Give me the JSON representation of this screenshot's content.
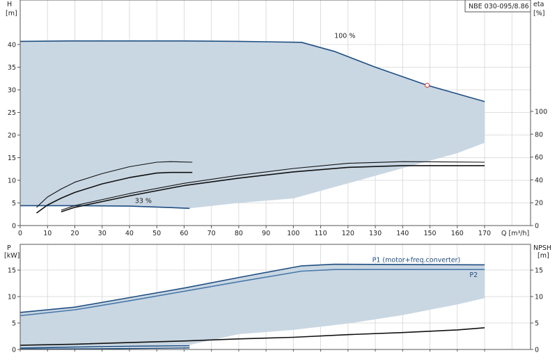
{
  "colors": {
    "envelope": "#c9d7e3",
    "envelope_light": "#e7f0f8",
    "curve_blue": "#1f4e80",
    "curve_black": "#111111",
    "p2_line": "#4a79a8",
    "marker": "#e03a3a",
    "grid": "#d4d4d4"
  },
  "chart_data": [
    {
      "type": "line",
      "id": "head-efficiency",
      "title": "NBE 030-095/8.86",
      "x": {
        "label": "Q [m³/h]",
        "range": [
          0,
          170
        ],
        "ticks": [
          0,
          10,
          20,
          30,
          40,
          50,
          60,
          70,
          80,
          90,
          100,
          110,
          120,
          130,
          140,
          150,
          160,
          170
        ]
      },
      "y_left": {
        "label": "H",
        "unit": "[m]",
        "range": [
          0,
          45
        ],
        "ticks": [
          0,
          5,
          10,
          15,
          20,
          25,
          30,
          35,
          40
        ]
      },
      "y_right": {
        "label": "eta",
        "unit": "[%]",
        "range": [
          0,
          120
        ],
        "ticks": [
          0,
          20,
          40,
          60,
          80,
          100
        ]
      },
      "grid": true,
      "envelope": {
        "upper": [
          [
            0,
            40.7
          ],
          [
            18,
            40.8
          ],
          [
            60,
            40.8
          ],
          [
            80,
            40.7
          ],
          [
            103,
            40.5
          ],
          [
            115,
            38.5
          ],
          [
            130,
            35
          ],
          [
            149,
            31
          ],
          [
            170,
            27.4
          ]
        ],
        "lower": [
          [
            170,
            18.3
          ],
          [
            160,
            16
          ],
          [
            145,
            13.5
          ],
          [
            130,
            11
          ],
          [
            115,
            8.5
          ],
          [
            100,
            6
          ],
          [
            80,
            5
          ],
          [
            62,
            3.8
          ],
          [
            40,
            4.2
          ],
          [
            20,
            4.4
          ],
          [
            0,
            4.4
          ]
        ]
      },
      "light_region": [
        [
          0,
          4.4
        ],
        [
          0,
          40.7
        ],
        [
          18,
          40.8
        ],
        [
          13,
          29
        ],
        [
          10,
          19
        ],
        [
          8,
          11
        ],
        [
          6,
          5
        ],
        [
          4.5,
          4.4
        ]
      ],
      "series": [
        {
          "name": "100 %",
          "axis": "left",
          "color": "curve_blue",
          "points": [
            [
              0,
              40.7
            ],
            [
              18,
              40.8
            ],
            [
              60,
              40.8
            ],
            [
              80,
              40.7
            ],
            [
              103,
              40.5
            ],
            [
              115,
              38.5
            ],
            [
              130,
              35
            ],
            [
              149,
              31
            ],
            [
              170,
              27.4
            ]
          ]
        },
        {
          "name": "33 %",
          "axis": "left",
          "color": "curve_blue",
          "points": [
            [
              0,
              4.4
            ],
            [
              20,
              4.4
            ],
            [
              40,
              4.3
            ],
            [
              50,
              4.1
            ],
            [
              62,
              3.8
            ]
          ]
        },
        {
          "name": "",
          "axis": "right",
          "color": "curve_black",
          "thin": true,
          "points": [
            [
              6,
              16
            ],
            [
              10,
              25
            ],
            [
              15,
              32
            ],
            [
              20,
              38
            ],
            [
              30,
              45.5
            ],
            [
              40,
              51.5
            ],
            [
              50,
              55.5
            ],
            [
              55,
              56
            ],
            [
              63,
              55.5
            ]
          ]
        },
        {
          "name": "",
          "axis": "right",
          "color": "curve_black",
          "points": [
            [
              6,
              11
            ],
            [
              10,
              18
            ],
            [
              15,
              24
            ],
            [
              20,
              29
            ],
            [
              30,
              36.5
            ],
            [
              40,
              42
            ],
            [
              50,
              46
            ],
            [
              55,
              46.5
            ],
            [
              63,
              46.5
            ]
          ]
        },
        {
          "name": "",
          "axis": "right",
          "color": "curve_black",
          "thin": true,
          "points": [
            [
              15,
              13.5
            ],
            [
              20,
              17.5
            ],
            [
              40,
              28
            ],
            [
              60,
              37
            ],
            [
              80,
              44
            ],
            [
              100,
              50
            ],
            [
              120,
              54.5
            ],
            [
              140,
              56
            ],
            [
              170,
              55.5
            ]
          ]
        },
        {
          "name": "",
          "axis": "right",
          "color": "curve_black",
          "points": [
            [
              15,
              12
            ],
            [
              20,
              16
            ],
            [
              40,
              26
            ],
            [
              60,
              35
            ],
            [
              80,
              41.5
            ],
            [
              100,
              47
            ],
            [
              120,
              51
            ],
            [
              140,
              52.5
            ],
            [
              170,
              52.5
            ]
          ]
        }
      ],
      "annotations": [
        {
          "text": "100 %",
          "x": 115,
          "y": 41.5
        },
        {
          "text": "33 %",
          "x": 42,
          "y": 5
        }
      ],
      "marker": {
        "x": 149,
        "y": 31
      }
    },
    {
      "type": "line",
      "id": "power-npsh",
      "x": {
        "range": [
          0,
          170
        ]
      },
      "y_left": {
        "label": "P",
        "unit": "[kW]",
        "range": [
          0,
          17.5
        ],
        "ticks": [
          0,
          5,
          10,
          15
        ]
      },
      "y_right": {
        "label": "NPSH",
        "unit": "[m]",
        "range": [
          0,
          17.5
        ],
        "ticks": [
          0,
          5,
          10,
          15
        ]
      },
      "grid": true,
      "envelope": {
        "upper": [
          [
            0,
            7
          ],
          [
            20,
            8
          ],
          [
            40,
            9.8
          ],
          [
            60,
            11.6
          ],
          [
            80,
            13.6
          ],
          [
            103,
            15.8
          ],
          [
            115,
            16.1
          ],
          [
            170,
            16
          ]
        ],
        "lower": [
          [
            170,
            9.7
          ],
          [
            160,
            8.5
          ],
          [
            140,
            6.5
          ],
          [
            120,
            4.9
          ],
          [
            100,
            3.7
          ],
          [
            80,
            2.9
          ],
          [
            62,
            0.85
          ],
          [
            40,
            0.7
          ],
          [
            20,
            0.55
          ],
          [
            0,
            0.3
          ]
        ]
      },
      "light_region": [
        [
          0,
          0.3
        ],
        [
          0,
          7
        ],
        [
          20,
          8
        ],
        [
          16,
          4.5
        ],
        [
          13,
          1.5
        ],
        [
          10,
          0.45
        ]
      ],
      "series": [
        {
          "name": "P1 (motor+freq.converter)",
          "axis": "left",
          "color": "curve_blue",
          "points": [
            [
              0,
              7
            ],
            [
              20,
              8
            ],
            [
              40,
              9.8
            ],
            [
              60,
              11.6
            ],
            [
              80,
              13.6
            ],
            [
              103,
              15.8
            ],
            [
              115,
              16.1
            ],
            [
              170,
              16
            ]
          ]
        },
        {
          "name": "P2",
          "axis": "left",
          "color": "p2_line",
          "points": [
            [
              0,
              6.4
            ],
            [
              20,
              7.5
            ],
            [
              40,
              9.2
            ],
            [
              60,
              11
            ],
            [
              80,
              12.8
            ],
            [
              103,
              14.8
            ],
            [
              115,
              15.1
            ],
            [
              170,
              15.1
            ]
          ]
        },
        {
          "name": "",
          "axis": "left",
          "color": "curve_blue",
          "points": [
            [
              0,
              0.25
            ],
            [
              20,
              0.45
            ],
            [
              40,
              0.6
            ],
            [
              62,
              0.7
            ]
          ]
        },
        {
          "name": "",
          "axis": "left",
          "color": "curve_blue",
          "points": [
            [
              0,
              0.05
            ],
            [
              30,
              0.15
            ],
            [
              62,
              0.3
            ]
          ]
        },
        {
          "name": "",
          "axis": "right",
          "color": "curve_black",
          "points": [
            [
              0,
              0.8
            ],
            [
              20,
              1
            ],
            [
              40,
              1.3
            ],
            [
              60,
              1.6
            ],
            [
              80,
              2
            ],
            [
              100,
              2.3
            ],
            [
              120,
              2.8
            ],
            [
              140,
              3.2
            ],
            [
              160,
              3.7
            ],
            [
              170,
              4.1
            ]
          ]
        }
      ],
      "annotations": [
        {
          "text": "P1 (motor+freq.converter)",
          "x": 145,
          "y": 16.5
        },
        {
          "text": "P2",
          "x": 166,
          "y": 13.7
        }
      ]
    }
  ]
}
